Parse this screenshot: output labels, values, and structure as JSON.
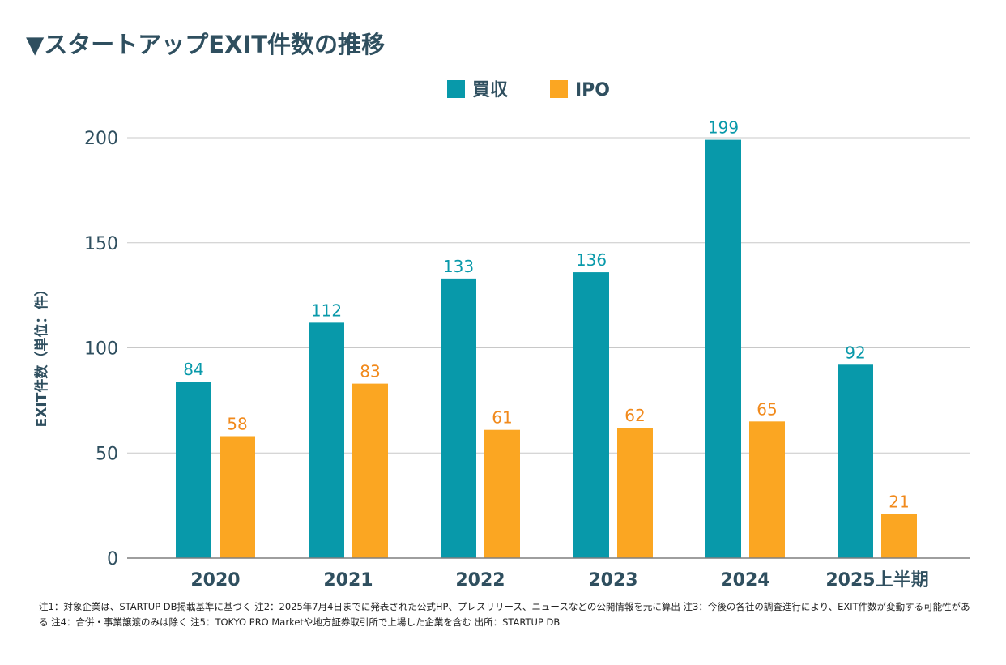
{
  "title": "▼スタートアップEXIT件数の推移",
  "colors": {
    "acquisition": "#0899aa",
    "ipo": "#fba622",
    "text": "#2f4f5f"
  },
  "footnote": "注1：対象企業は、STARTUP DB掲載基準に基づく 注2：2025年7月4日までに発表された公式HP、プレスリリース、ニュースなどの公開情報を元に算出 注3：今後の各社の調査進行により、EXIT件数が変動する可能性がある 注4：合併・事業譲渡のみは除く 注5：TOKYO PRO Marketや地方証券取引所で上場した企業を含む 出所：STARTUP DB",
  "chart_data": {
    "type": "bar",
    "title": "▼スタートアップEXIT件数の推移",
    "ylabel": "EXIT件数（単位：件）",
    "xlabel": "",
    "categories": [
      "2020",
      "2021",
      "2022",
      "2023",
      "2024",
      "2025上半期"
    ],
    "series": [
      {
        "name": "買収",
        "values": [
          84,
          112,
          133,
          136,
          199,
          92
        ]
      },
      {
        "name": "IPO",
        "values": [
          58,
          83,
          61,
          62,
          65,
          21
        ]
      }
    ],
    "ylim": [
      0,
      200
    ],
    "yticks": [
      0,
      50,
      100,
      150,
      200
    ],
    "grid": true,
    "legend": "top-center"
  }
}
